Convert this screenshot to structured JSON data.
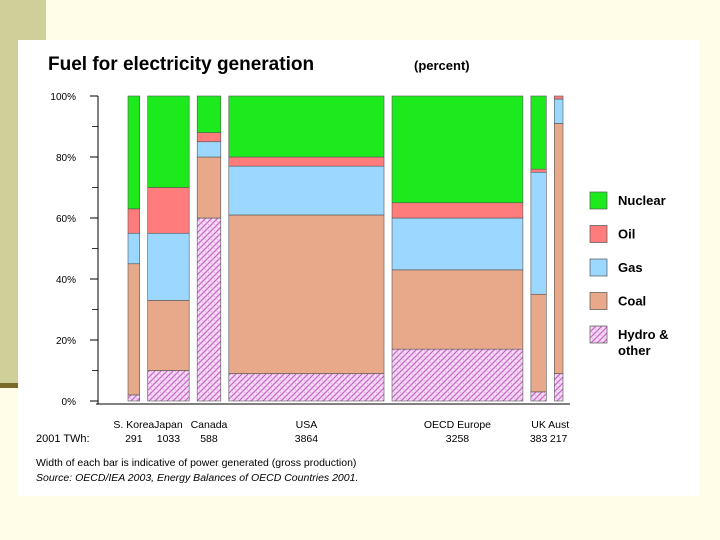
{
  "chart_data": {
    "type": "bar",
    "subtype": "variable-width stacked bar (percent)",
    "title": "Fuel for electricity generation",
    "title_unit": "(percent)",
    "ylim": [
      0,
      100
    ],
    "y_ticks": [
      0,
      20,
      40,
      60,
      80,
      100
    ],
    "y_tick_labels": [
      "0%",
      "20%",
      "40%",
      "60%",
      "80%",
      "100%"
    ],
    "twh_label": "2001 TWh:",
    "categories": [
      "S. Korea",
      "Japan",
      "Canada",
      "USA",
      "OECD Europe",
      "UK",
      "Aust"
    ],
    "twh": [
      "291",
      "1033",
      "588",
      "3864",
      "3258",
      "383",
      "217"
    ],
    "twh_values": [
      291,
      1033,
      588,
      3864,
      3258,
      383,
      217
    ],
    "series": [
      {
        "name": "Hydro & other",
        "color": "#e7a8e7",
        "values": [
          2,
          10,
          60,
          9,
          17,
          3,
          9
        ]
      },
      {
        "name": "Coal",
        "color": "#e7a98a",
        "values": [
          43,
          23,
          20,
          52,
          26,
          32,
          82
        ]
      },
      {
        "name": "Gas",
        "color": "#9cd7ff",
        "values": [
          10,
          22,
          5,
          16,
          17,
          40,
          8
        ]
      },
      {
        "name": "Oil",
        "color": "#ff7c7c",
        "values": [
          8,
          15,
          3,
          3,
          5,
          1,
          1
        ]
      },
      {
        "name": "Nuclear",
        "color": "#1dea1d",
        "values": [
          37,
          30,
          12,
          20,
          35,
          24,
          0
        ]
      }
    ],
    "legend": {
      "position": "right",
      "order": [
        "Nuclear",
        "Oil",
        "Gas",
        "Coal",
        "Hydro & other"
      ],
      "labels": [
        "Nuclear",
        "Oil",
        "Gas",
        "Coal",
        "Hydro &\nother"
      ]
    },
    "footnote": "Width of each bar is indicative of power generated (gross production)",
    "source": "Source: OECD/IEA 2003, Energy Balances of OECD Countries 2001."
  }
}
